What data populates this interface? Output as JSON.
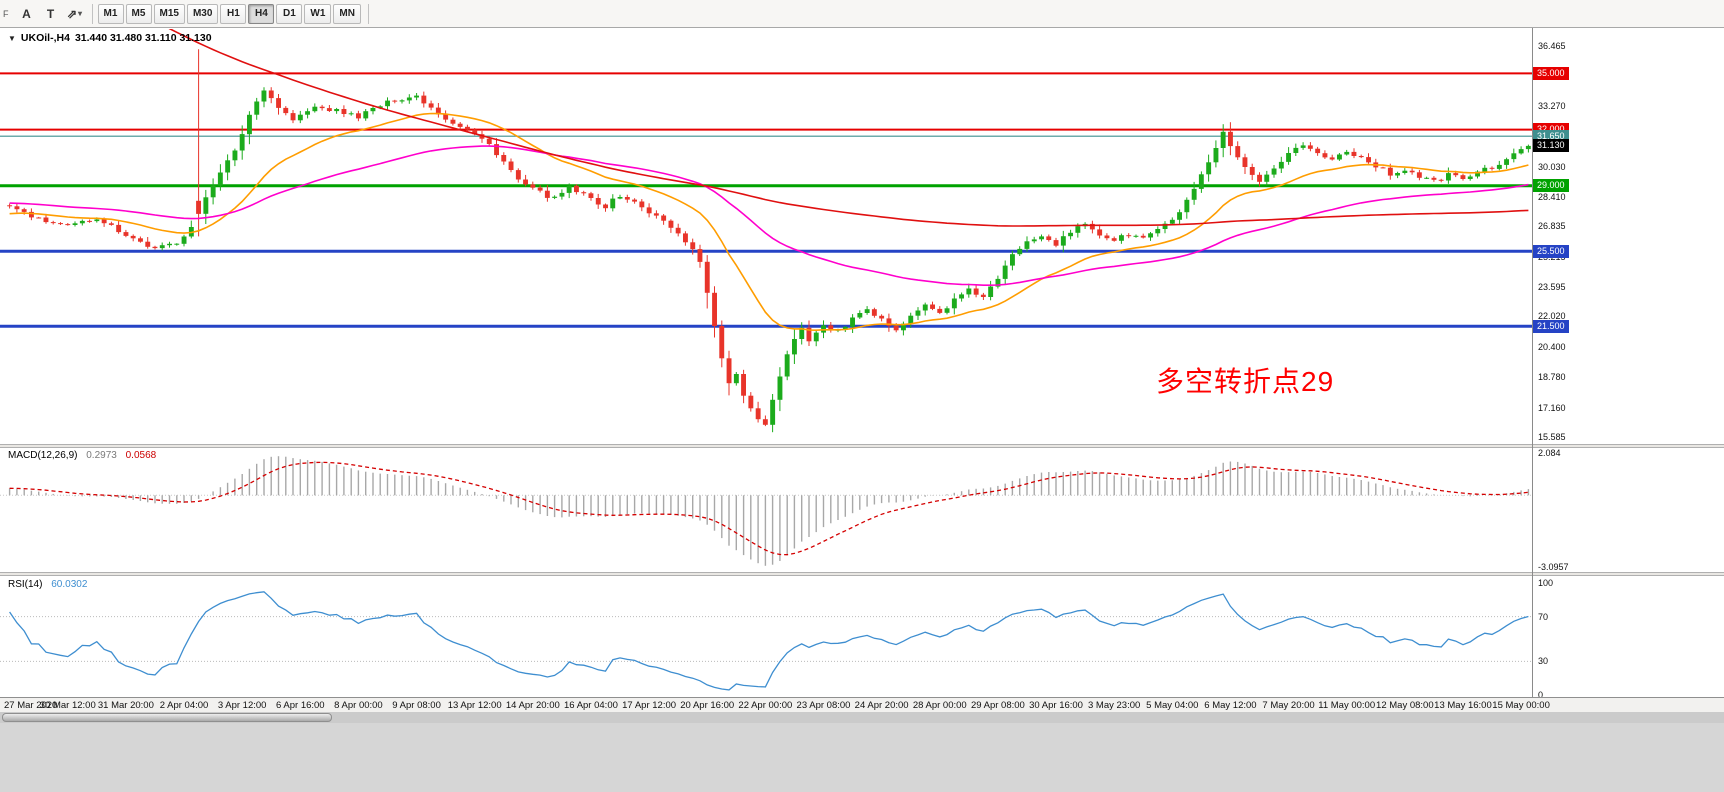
{
  "toolbar": {
    "corner_label": "F",
    "icons": [
      {
        "name": "text-tool",
        "glyph": "A"
      },
      {
        "name": "label-tool",
        "glyph": "T"
      },
      {
        "name": "indicator-tool",
        "glyph": "⇗"
      },
      {
        "name": "dropdown-caret",
        "glyph": "▾"
      }
    ],
    "timeframes": [
      "M1",
      "M5",
      "M15",
      "M30",
      "H1",
      "H4",
      "D1",
      "W1",
      "MN"
    ],
    "active_timeframe": "H4"
  },
  "chart": {
    "dropdown_glyph": "▼",
    "symbol": "UKOil-,H4",
    "ohlc": "31.440 31.480 31.110 31.130",
    "annotation": {
      "text": "多空转折点29",
      "color": "#ff0000"
    },
    "background": "#ffffff"
  },
  "chart_data": [
    {
      "type": "candlestick",
      "title": "UKOil- H4",
      "n_bars": 210,
      "label_every": 8,
      "x_labels": [
        "27 Mar 2020",
        "30 Mar 12:00",
        "31 Mar 20:00",
        "2 Apr 04:00",
        "3 Apr 12:00",
        "6 Apr 16:00",
        "8 Apr 00:00",
        "9 Apr 08:00",
        "13 Apr 12:00",
        "14 Apr 20:00",
        "16 Apr 04:00",
        "17 Apr 12:00",
        "20 Apr 16:00",
        "22 Apr 00:00",
        "23 Apr 08:00",
        "24 Apr 20:00",
        "28 Apr 00:00",
        "29 Apr 08:00",
        "30 Apr 16:00",
        "3 May 23:00",
        "5 May 04:00",
        "6 May 12:00",
        "7 May 20:00",
        "11 May 00:00",
        "12 May 08:00",
        "13 May 16:00",
        "15 May 00:00"
      ],
      "ylim": [
        15.585,
        36.465
      ],
      "y_ticks": [
        "36.465",
        "33.270",
        "30.030",
        "28.410",
        "26.835",
        "25.215",
        "23.595",
        "22.020",
        "20.400",
        "18.780",
        "17.160",
        "15.585"
      ],
      "up_color": "#1cab1c",
      "down_color": "#e8342a",
      "wiggle": 0.24,
      "last_close": 31.13,
      "close_waypoints": [
        [
          0,
          27.9
        ],
        [
          4,
          27.2
        ],
        [
          8,
          26.8
        ],
        [
          12,
          27.3
        ],
        [
          16,
          26.4
        ],
        [
          20,
          25.6
        ],
        [
          23,
          26.0
        ],
        [
          25,
          26.8
        ],
        [
          27,
          28.4
        ],
        [
          29,
          29.8
        ],
        [
          31,
          30.8
        ],
        [
          33,
          32.8
        ],
        [
          35,
          34.2
        ],
        [
          37,
          33.2
        ],
        [
          39,
          32.5
        ],
        [
          42,
          33.2
        ],
        [
          45,
          33.0
        ],
        [
          48,
          32.7
        ],
        [
          50,
          33.1
        ],
        [
          53,
          33.6
        ],
        [
          56,
          33.8
        ],
        [
          58,
          33.2
        ],
        [
          60,
          32.6
        ],
        [
          63,
          32.0
        ],
        [
          66,
          31.2
        ],
        [
          68,
          30.3
        ],
        [
          70,
          29.3
        ],
        [
          72,
          28.8
        ],
        [
          75,
          28.3
        ],
        [
          77,
          28.9
        ],
        [
          80,
          28.3
        ],
        [
          82,
          27.9
        ],
        [
          84,
          28.5
        ],
        [
          86,
          28.1
        ],
        [
          88,
          27.6
        ],
        [
          90,
          27.1
        ],
        [
          92,
          26.4
        ],
        [
          94,
          25.7
        ],
        [
          95,
          24.9
        ],
        [
          96,
          23.3
        ],
        [
          97,
          21.6
        ],
        [
          98,
          19.7
        ],
        [
          99,
          18.5
        ],
        [
          100,
          18.9
        ],
        [
          101,
          17.7
        ],
        [
          102,
          17.1
        ],
        [
          103,
          16.6
        ],
        [
          104,
          16.3
        ],
        [
          105,
          17.6
        ],
        [
          106,
          18.9
        ],
        [
          107,
          20.0
        ],
        [
          108,
          20.9
        ],
        [
          109,
          21.4
        ],
        [
          110,
          20.8
        ],
        [
          112,
          21.5
        ],
        [
          114,
          21.2
        ],
        [
          116,
          21.9
        ],
        [
          118,
          22.3
        ],
        [
          120,
          21.8
        ],
        [
          122,
          21.4
        ],
        [
          124,
          22.1
        ],
        [
          126,
          22.6
        ],
        [
          128,
          22.2
        ],
        [
          130,
          22.9
        ],
        [
          132,
          23.4
        ],
        [
          134,
          23.1
        ],
        [
          136,
          24.0
        ],
        [
          138,
          25.3
        ],
        [
          140,
          26.1
        ],
        [
          142,
          26.4
        ],
        [
          144,
          25.9
        ],
        [
          146,
          26.5
        ],
        [
          148,
          27.0
        ],
        [
          150,
          26.4
        ],
        [
          152,
          26.1
        ],
        [
          154,
          26.4
        ],
        [
          156,
          26.2
        ],
        [
          158,
          26.7
        ],
        [
          160,
          27.1
        ],
        [
          162,
          28.2
        ],
        [
          164,
          29.5
        ],
        [
          166,
          30.9
        ],
        [
          167,
          31.8
        ],
        [
          168,
          31.1
        ],
        [
          170,
          29.9
        ],
        [
          172,
          29.1
        ],
        [
          174,
          29.9
        ],
        [
          176,
          30.8
        ],
        [
          178,
          31.2
        ],
        [
          180,
          30.7
        ],
        [
          182,
          30.4
        ],
        [
          184,
          30.9
        ],
        [
          186,
          30.5
        ],
        [
          188,
          30.1
        ],
        [
          190,
          29.6
        ],
        [
          192,
          29.9
        ],
        [
          194,
          29.5
        ],
        [
          196,
          29.2
        ],
        [
          198,
          29.6
        ],
        [
          200,
          29.4
        ],
        [
          202,
          29.7
        ],
        [
          204,
          30.0
        ],
        [
          206,
          30.4
        ],
        [
          209,
          31.13
        ]
      ],
      "prehistory_waypoints": [
        [
          -200,
          70
        ],
        [
          -175,
          65
        ],
        [
          -155,
          58
        ],
        [
          -135,
          52
        ],
        [
          -118,
          46
        ],
        [
          -105,
          38
        ],
        [
          -92,
          33.5
        ],
        [
          -80,
          31
        ],
        [
          -68,
          27.5
        ],
        [
          -58,
          25.2
        ],
        [
          -48,
          26.5
        ],
        [
          -38,
          25.0
        ],
        [
          -28,
          26.6
        ],
        [
          -14,
          27.4
        ],
        [
          -1,
          27.9
        ]
      ],
      "candle_overrides": {
        "26": [
          28.2,
          36.29,
          26.3,
          27.5
        ]
      },
      "levels": [
        {
          "price": 35.0,
          "label": "35.000",
          "color": "#e60000",
          "width": 2
        },
        {
          "price": 32.0,
          "label": "32.000",
          "color": "#e60000",
          "width": 2
        },
        {
          "price": 31.65,
          "label": "31.650",
          "color": "#3f8f8f",
          "width": 1.2
        },
        {
          "price": 29.0,
          "label": "29.000",
          "color": "#00a200",
          "width": 3
        },
        {
          "price": 25.5,
          "label": "25.500",
          "color": "#2543c5",
          "width": 3
        },
        {
          "price": 21.5,
          "label": "21.500",
          "color": "#2543c5",
          "width": 3
        }
      ],
      "current_price": {
        "price": 31.13,
        "label": "31.130",
        "bg": "#000000"
      },
      "moving_averages": [
        {
          "name": "ma-fast-orange",
          "type": "ema",
          "period": 21,
          "color": "#ff9d00"
        },
        {
          "name": "ma-mid-magenta",
          "type": "ema",
          "period": 62,
          "color": "#ff00cc"
        },
        {
          "name": "ma-slow-red",
          "type": "sma",
          "period": 200,
          "color": "#e01010"
        }
      ]
    },
    {
      "type": "macd",
      "label": "MACD(12,26,9)",
      "params": [
        12,
        26,
        9
      ],
      "value_main": "0.2973",
      "value_signal": "0.0568",
      "y_ticks": [
        "2.084",
        "-3.0957"
      ],
      "histogram_color": "#a8a8a8",
      "signal_color": "#d40000"
    },
    {
      "type": "rsi",
      "label": "RSI(14)",
      "period": 14,
      "value": "60.0302",
      "y_ticks": [
        "100",
        "70",
        "30",
        "0"
      ],
      "levels": [
        70,
        30
      ],
      "line_color": "#3e8ed0"
    }
  ],
  "scrollbar": {
    "thumb_start": 2,
    "thumb_width": 330
  }
}
